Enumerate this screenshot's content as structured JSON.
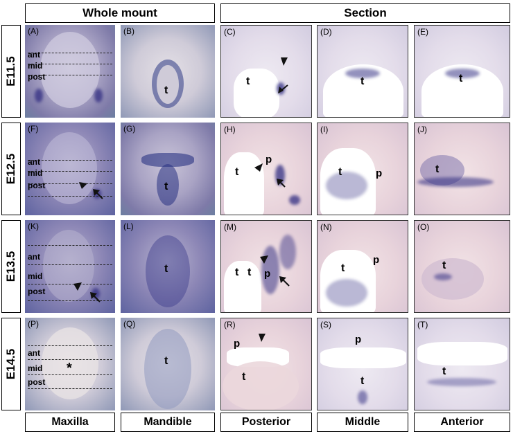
{
  "headers": {
    "whole_mount": "Whole mount",
    "section": "Section"
  },
  "rows": [
    "E11.5",
    "E12.5",
    "E13.5",
    "E14.5"
  ],
  "footers": [
    "Maxilla",
    "Mandible",
    "Posterior",
    "Middle",
    "Anterior"
  ],
  "panels": [
    [
      "(A)",
      "(B)",
      "(C)",
      "(D)",
      "(E)"
    ],
    [
      "(F)",
      "(G)",
      "(H)",
      "(I)",
      "(J)"
    ],
    [
      "(K)",
      "(L)",
      "(M)",
      "(N)",
      "(O)"
    ],
    [
      "(P)",
      "(Q)",
      "(R)",
      "(S)",
      "(T)"
    ]
  ],
  "guides": {
    "ant": "ant",
    "mid": "mid",
    "post": "post"
  },
  "labels": {
    "tongue": "t",
    "palate": "p",
    "asterisk": "*"
  }
}
